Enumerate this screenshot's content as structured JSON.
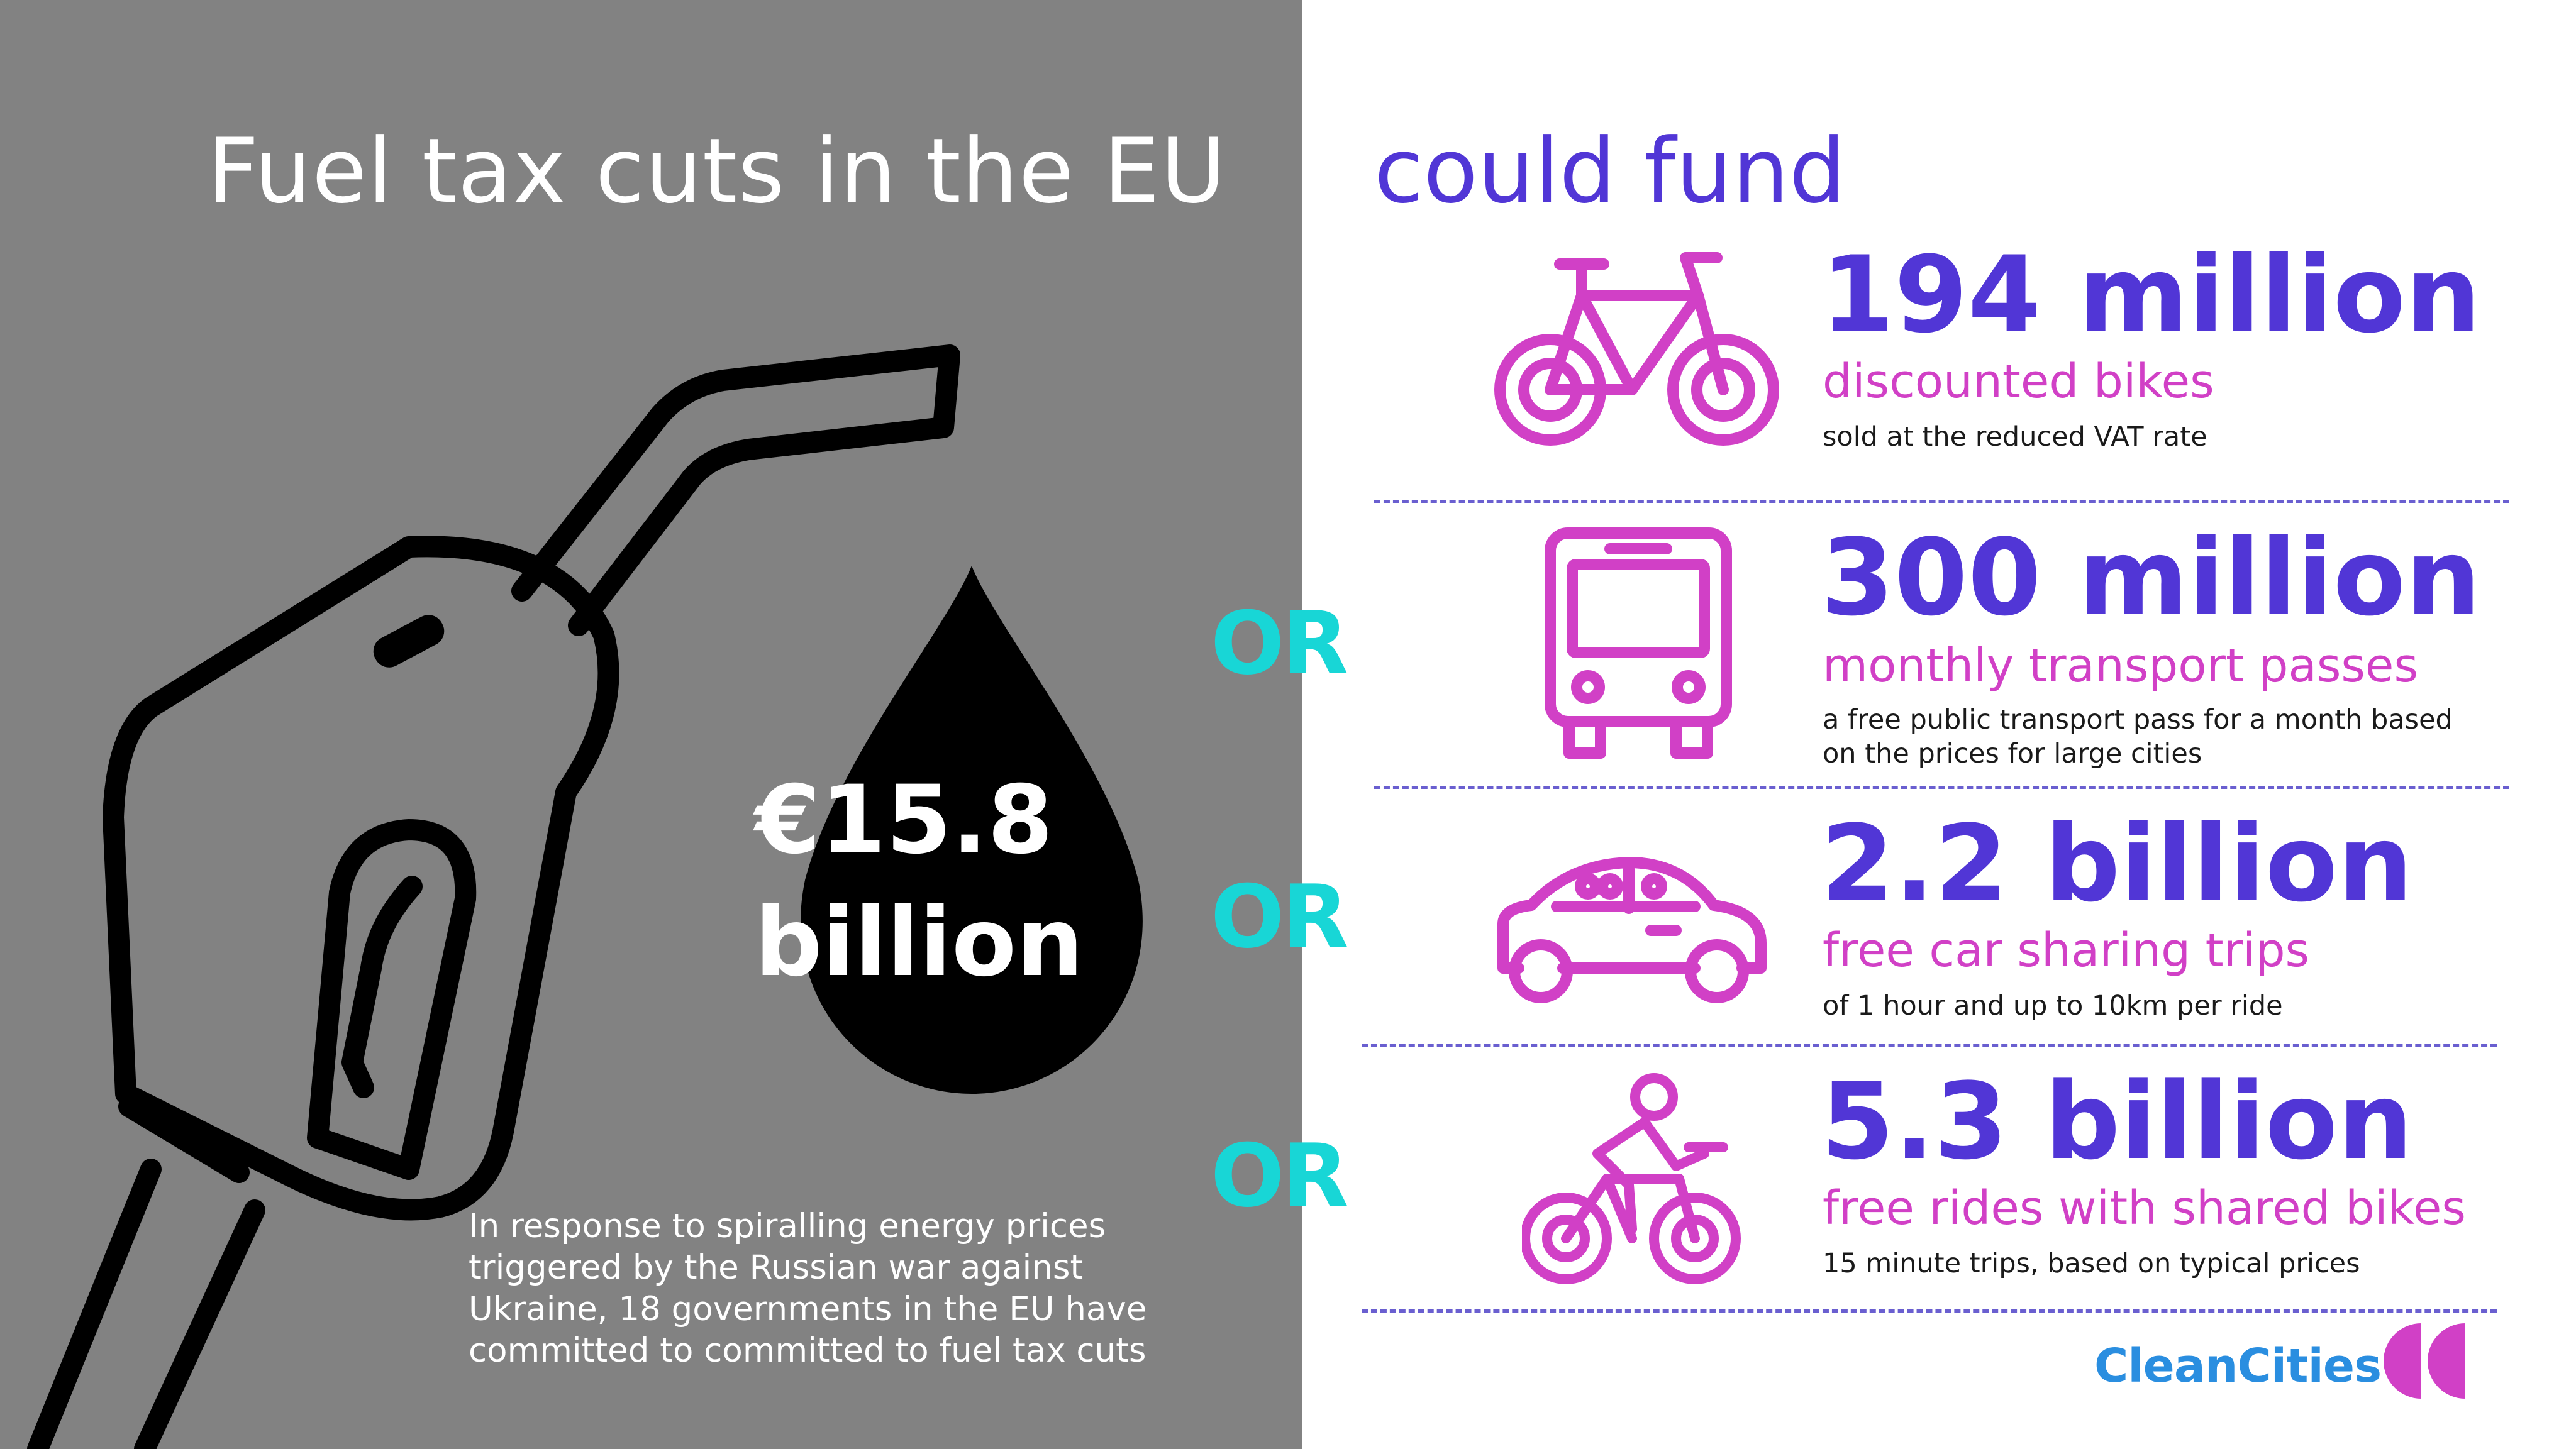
{
  "left": {
    "title": "Fuel tax cuts in the EU",
    "amount": "€15.8",
    "amount_unit": "billion",
    "context_lines": [
      "In response to spiralling energy prices",
      "triggered by the Russian war against",
      "Ukraine, 18 governments in the EU have",
      "committed to committed to fuel tax cuts"
    ]
  },
  "right": {
    "heading": "could fund",
    "or_label": "OR",
    "items": [
      {
        "icon": "bike-icon",
        "value": "194 million",
        "label": "discounted bikes",
        "note_lines": [
          "sold at the reduced VAT rate"
        ]
      },
      {
        "icon": "bus-icon",
        "value": "300 million",
        "label": "monthly transport passes",
        "note_lines": [
          "a free public transport pass for a month based",
          "on the prices for large cities"
        ]
      },
      {
        "icon": "car-icon",
        "value": "2.2 billion",
        "label": "free car sharing trips",
        "note_lines": [
          "of 1 hour and up to 10km per ride"
        ]
      },
      {
        "icon": "cyclist-icon",
        "value": "5.3 billion",
        "label": "free rides with shared bikes",
        "note_lines": [
          "15 minute trips, based on typical prices"
        ]
      }
    ]
  },
  "logo": {
    "text": "CleanCities"
  },
  "colors": {
    "left_background": "#828282",
    "heading_purple": "#5136d6",
    "label_magenta": "#d140c6",
    "or_cyan": "#18d6d6",
    "logo_blue": "#2a8ee0"
  }
}
